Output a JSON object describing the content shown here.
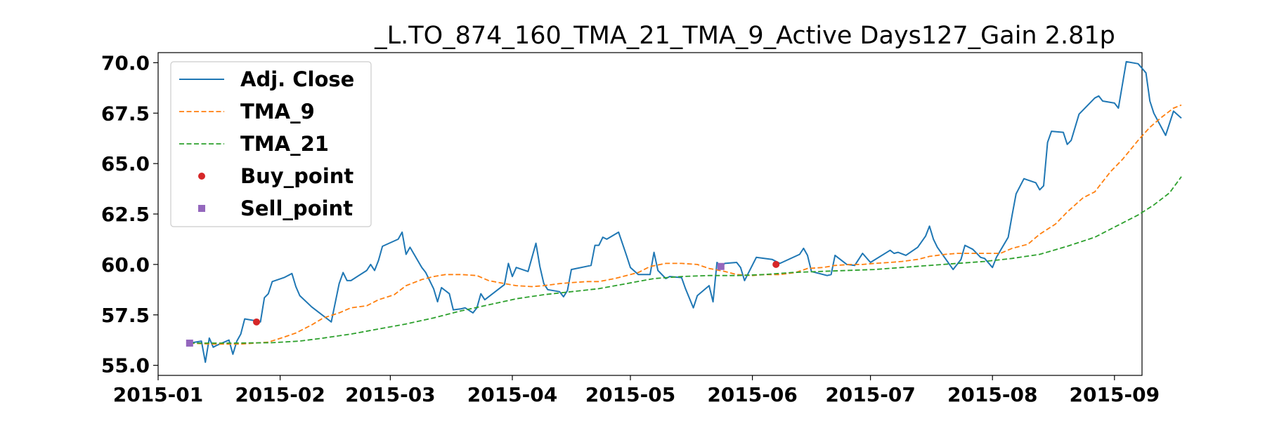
{
  "chart_data": {
    "type": "line",
    "title": "_L.TO_874_160_TMA_21_TMA_9_Active Days127_Gain   2.81p",
    "xlabel": "",
    "ylabel": "",
    "xlim": [
      "2015-01-01",
      "2015-09-08"
    ],
    "ylim": [
      54.5,
      70.5
    ],
    "x_ticks": [
      "2015-01",
      "2015-02",
      "2015-03",
      "2015-04",
      "2015-05",
      "2015-06",
      "2015-07",
      "2015-08",
      "2015-09"
    ],
    "y_ticks": [
      "55.0",
      "57.5",
      "60.0",
      "62.5",
      "65.0",
      "67.5",
      "70.0"
    ],
    "grid": false,
    "legend_position": "upper-left",
    "series": [
      {
        "name": "Adj. Close",
        "style": "solid",
        "color": "#1f77b4",
        "points": [
          [
            "2015-01-09",
            56.1
          ],
          [
            "2015-01-12",
            56.2
          ],
          [
            "2015-01-13",
            55.15
          ],
          [
            "2015-01-14",
            56.35
          ],
          [
            "2015-01-15",
            55.9
          ],
          [
            "2015-01-16",
            56.0
          ],
          [
            "2015-01-19",
            56.25
          ],
          [
            "2015-01-20",
            55.55
          ],
          [
            "2015-01-21",
            56.2
          ],
          [
            "2015-01-22",
            56.55
          ],
          [
            "2015-01-23",
            57.3
          ],
          [
            "2015-01-26",
            57.2
          ],
          [
            "2015-01-27",
            57.15
          ],
          [
            "2015-01-28",
            58.35
          ],
          [
            "2015-01-29",
            58.55
          ],
          [
            "2015-01-30",
            59.15
          ],
          [
            "2015-02-02",
            59.35
          ],
          [
            "2015-02-04",
            59.55
          ],
          [
            "2015-02-05",
            58.9
          ],
          [
            "2015-02-06",
            58.45
          ],
          [
            "2015-02-09",
            57.9
          ],
          [
            "2015-02-11",
            57.6
          ],
          [
            "2015-02-13",
            57.3
          ],
          [
            "2015-02-14",
            57.15
          ],
          [
            "2015-02-16",
            59.05
          ],
          [
            "2015-02-17",
            59.6
          ],
          [
            "2015-02-18",
            59.2
          ],
          [
            "2015-02-19",
            59.2
          ],
          [
            "2015-02-23",
            59.7
          ],
          [
            "2015-02-24",
            60.0
          ],
          [
            "2015-02-25",
            59.7
          ],
          [
            "2015-02-26",
            60.2
          ],
          [
            "2015-02-27",
            60.9
          ],
          [
            "2015-03-03",
            61.25
          ],
          [
            "2015-03-04",
            61.6
          ],
          [
            "2015-03-05",
            60.5
          ],
          [
            "2015-03-06",
            60.85
          ],
          [
            "2015-03-09",
            59.85
          ],
          [
            "2015-03-10",
            59.6
          ],
          [
            "2015-03-12",
            58.8
          ],
          [
            "2015-03-13",
            58.15
          ],
          [
            "2015-03-14",
            58.85
          ],
          [
            "2015-03-16",
            58.55
          ],
          [
            "2015-03-17",
            57.75
          ],
          [
            "2015-03-19",
            57.8
          ],
          [
            "2015-03-20",
            57.85
          ],
          [
            "2015-03-22",
            57.6
          ],
          [
            "2015-03-23",
            57.85
          ],
          [
            "2015-03-24",
            58.55
          ],
          [
            "2015-03-25",
            58.25
          ],
          [
            "2015-03-27",
            58.55
          ],
          [
            "2015-03-30",
            59.0
          ],
          [
            "2015-03-31",
            60.05
          ],
          [
            "2015-04-01",
            59.4
          ],
          [
            "2015-04-02",
            59.85
          ],
          [
            "2015-04-05",
            59.65
          ],
          [
            "2015-04-07",
            61.05
          ],
          [
            "2015-04-08",
            59.9
          ],
          [
            "2015-04-09",
            59.05
          ],
          [
            "2015-04-10",
            58.75
          ],
          [
            "2015-04-13",
            58.65
          ],
          [
            "2015-04-14",
            58.4
          ],
          [
            "2015-04-15",
            58.7
          ],
          [
            "2015-04-16",
            59.75
          ],
          [
            "2015-04-21",
            59.95
          ],
          [
            "2015-04-22",
            60.95
          ],
          [
            "2015-04-23",
            60.95
          ],
          [
            "2015-04-24",
            61.35
          ],
          [
            "2015-04-25",
            61.25
          ],
          [
            "2015-04-28",
            61.6
          ],
          [
            "2015-04-30",
            60.45
          ],
          [
            "2015-05-01",
            59.85
          ],
          [
            "2015-05-03",
            59.5
          ],
          [
            "2015-05-06",
            59.5
          ],
          [
            "2015-05-07",
            60.6
          ],
          [
            "2015-05-08",
            59.7
          ],
          [
            "2015-05-10",
            59.3
          ],
          [
            "2015-05-11",
            59.4
          ],
          [
            "2015-05-14",
            59.35
          ],
          [
            "2015-05-15",
            58.8
          ],
          [
            "2015-05-17",
            57.85
          ],
          [
            "2015-05-18",
            58.45
          ],
          [
            "2015-05-21",
            58.95
          ],
          [
            "2015-05-22",
            58.15
          ],
          [
            "2015-05-23",
            60.1
          ],
          [
            "2015-05-24",
            59.9
          ],
          [
            "2015-05-25",
            60.05
          ],
          [
            "2015-05-28",
            60.1
          ],
          [
            "2015-05-29",
            59.85
          ],
          [
            "2015-05-30",
            59.2
          ],
          [
            "2015-06-02",
            60.35
          ],
          [
            "2015-06-06",
            60.25
          ],
          [
            "2015-06-08",
            60.05
          ],
          [
            "2015-06-13",
            60.5
          ],
          [
            "2015-06-14",
            60.8
          ],
          [
            "2015-06-15",
            60.45
          ],
          [
            "2015-06-16",
            59.65
          ],
          [
            "2015-06-20",
            59.45
          ],
          [
            "2015-06-21",
            59.5
          ],
          [
            "2015-06-22",
            60.45
          ],
          [
            "2015-06-25",
            60.0
          ],
          [
            "2015-06-27",
            59.95
          ],
          [
            "2015-06-29",
            60.55
          ],
          [
            "2015-07-01",
            60.1
          ],
          [
            "2015-07-06",
            60.7
          ],
          [
            "2015-07-07",
            60.55
          ],
          [
            "2015-07-08",
            60.6
          ],
          [
            "2015-07-10",
            60.45
          ],
          [
            "2015-07-13",
            60.85
          ],
          [
            "2015-07-15",
            61.4
          ],
          [
            "2015-07-16",
            61.9
          ],
          [
            "2015-07-17",
            61.25
          ],
          [
            "2015-07-18",
            60.85
          ],
          [
            "2015-07-22",
            59.75
          ],
          [
            "2015-07-24",
            60.25
          ],
          [
            "2015-07-25",
            60.95
          ],
          [
            "2015-07-27",
            60.75
          ],
          [
            "2015-07-29",
            60.35
          ],
          [
            "2015-07-30",
            60.3
          ],
          [
            "2015-08-01",
            59.85
          ],
          [
            "2015-08-02",
            60.35
          ],
          [
            "2015-08-05",
            61.35
          ],
          [
            "2015-08-06",
            62.45
          ],
          [
            "2015-08-07",
            63.5
          ],
          [
            "2015-08-09",
            64.25
          ],
          [
            "2015-08-12",
            64.05
          ],
          [
            "2015-08-13",
            63.7
          ],
          [
            "2015-08-14",
            63.9
          ],
          [
            "2015-08-15",
            66.05
          ],
          [
            "2015-08-16",
            66.6
          ],
          [
            "2015-08-19",
            66.55
          ],
          [
            "2015-08-20",
            65.95
          ],
          [
            "2015-08-21",
            66.15
          ],
          [
            "2015-08-23",
            67.45
          ],
          [
            "2015-08-27",
            68.25
          ],
          [
            "2015-08-28",
            68.35
          ],
          [
            "2015-08-29",
            68.1
          ],
          [
            "2015-09-01",
            68.0
          ],
          [
            "2015-09-02",
            67.75
          ],
          [
            "2015-09-04",
            70.05
          ],
          [
            "2015-09-07",
            69.95
          ],
          [
            "2015-09-09",
            69.5
          ],
          [
            "2015-09-10",
            68.1
          ],
          [
            "2015-09-11",
            67.5
          ],
          [
            "2015-09-14",
            66.4
          ],
          [
            "2015-09-16",
            67.6
          ],
          [
            "2015-09-18",
            67.25
          ]
        ]
      },
      {
        "name": "TMA_9",
        "style": "dashed",
        "color": "#ff7f0e",
        "points": [
          [
            "2015-01-09",
            56.1
          ],
          [
            "2015-01-15",
            56.05
          ],
          [
            "2015-01-22",
            56.05
          ],
          [
            "2015-01-29",
            56.15
          ],
          [
            "2015-02-02",
            56.4
          ],
          [
            "2015-02-05",
            56.6
          ],
          [
            "2015-02-09",
            57.0
          ],
          [
            "2015-02-12",
            57.35
          ],
          [
            "2015-02-16",
            57.6
          ],
          [
            "2015-02-19",
            57.85
          ],
          [
            "2015-02-23",
            57.95
          ],
          [
            "2015-02-26",
            58.25
          ],
          [
            "2015-03-02",
            58.5
          ],
          [
            "2015-03-05",
            58.95
          ],
          [
            "2015-03-09",
            59.25
          ],
          [
            "2015-03-12",
            59.4
          ],
          [
            "2015-03-15",
            59.5
          ],
          [
            "2015-03-19",
            59.5
          ],
          [
            "2015-03-23",
            59.45
          ],
          [
            "2015-03-26",
            59.2
          ],
          [
            "2015-03-30",
            59.05
          ],
          [
            "2015-04-02",
            58.95
          ],
          [
            "2015-04-06",
            58.9
          ],
          [
            "2015-04-09",
            58.95
          ],
          [
            "2015-04-13",
            59.05
          ],
          [
            "2015-04-16",
            59.1
          ],
          [
            "2015-04-20",
            59.15
          ],
          [
            "2015-04-23",
            59.15
          ],
          [
            "2015-04-27",
            59.3
          ],
          [
            "2015-04-30",
            59.45
          ],
          [
            "2015-05-03",
            59.6
          ],
          [
            "2015-05-06",
            59.9
          ],
          [
            "2015-05-10",
            60.05
          ],
          [
            "2015-05-14",
            60.05
          ],
          [
            "2015-05-18",
            60.0
          ],
          [
            "2015-05-21",
            59.8
          ],
          [
            "2015-05-25",
            59.65
          ],
          [
            "2015-05-28",
            59.5
          ],
          [
            "2015-06-01",
            59.45
          ],
          [
            "2015-06-04",
            59.5
          ],
          [
            "2015-06-08",
            59.5
          ],
          [
            "2015-06-12",
            59.6
          ],
          [
            "2015-06-15",
            59.8
          ],
          [
            "2015-06-19",
            59.85
          ],
          [
            "2015-06-22",
            59.95
          ],
          [
            "2015-06-26",
            60.0
          ],
          [
            "2015-06-29",
            60.0
          ],
          [
            "2015-07-02",
            60.05
          ],
          [
            "2015-07-06",
            60.1
          ],
          [
            "2015-07-09",
            60.15
          ],
          [
            "2015-07-13",
            60.25
          ],
          [
            "2015-07-16",
            60.4
          ],
          [
            "2015-07-20",
            60.5
          ],
          [
            "2015-07-23",
            60.55
          ],
          [
            "2015-07-27",
            60.55
          ],
          [
            "2015-07-30",
            60.55
          ],
          [
            "2015-08-03",
            60.55
          ],
          [
            "2015-08-06",
            60.8
          ],
          [
            "2015-08-10",
            61.0
          ],
          [
            "2015-08-13",
            61.5
          ],
          [
            "2015-08-17",
            62.0
          ],
          [
            "2015-08-20",
            62.6
          ],
          [
            "2015-08-24",
            63.3
          ],
          [
            "2015-08-27",
            63.6
          ],
          [
            "2015-08-31",
            64.6
          ],
          [
            "2015-09-03",
            65.2
          ],
          [
            "2015-09-07",
            66.15
          ],
          [
            "2015-09-10",
            66.8
          ],
          [
            "2015-09-13",
            67.3
          ],
          [
            "2015-09-16",
            67.75
          ],
          [
            "2015-09-18",
            67.9
          ]
        ]
      },
      {
        "name": "TMA_21",
        "style": "dashed",
        "color": "#2ca02c",
        "points": [
          [
            "2015-01-09",
            56.1
          ],
          [
            "2015-01-20",
            56.1
          ],
          [
            "2015-01-30",
            56.12
          ],
          [
            "2015-02-06",
            56.2
          ],
          [
            "2015-02-12",
            56.35
          ],
          [
            "2015-02-19",
            56.55
          ],
          [
            "2015-02-26",
            56.8
          ],
          [
            "2015-03-05",
            57.05
          ],
          [
            "2015-03-12",
            57.35
          ],
          [
            "2015-03-19",
            57.7
          ],
          [
            "2015-03-26",
            58.0
          ],
          [
            "2015-04-02",
            58.3
          ],
          [
            "2015-04-09",
            58.5
          ],
          [
            "2015-04-16",
            58.65
          ],
          [
            "2015-04-23",
            58.8
          ],
          [
            "2015-04-30",
            59.05
          ],
          [
            "2015-05-07",
            59.3
          ],
          [
            "2015-05-14",
            59.4
          ],
          [
            "2015-05-21",
            59.45
          ],
          [
            "2015-05-28",
            59.45
          ],
          [
            "2015-06-04",
            59.5
          ],
          [
            "2015-06-11",
            59.6
          ],
          [
            "2015-06-18",
            59.65
          ],
          [
            "2015-06-25",
            59.7
          ],
          [
            "2015-07-02",
            59.75
          ],
          [
            "2015-07-09",
            59.85
          ],
          [
            "2015-07-16",
            59.95
          ],
          [
            "2015-07-23",
            60.05
          ],
          [
            "2015-07-30",
            60.15
          ],
          [
            "2015-08-06",
            60.3
          ],
          [
            "2015-08-13",
            60.5
          ],
          [
            "2015-08-20",
            60.9
          ],
          [
            "2015-08-27",
            61.35
          ],
          [
            "2015-09-02",
            61.95
          ],
          [
            "2015-09-07",
            62.45
          ],
          [
            "2015-09-11",
            62.95
          ],
          [
            "2015-09-15",
            63.55
          ],
          [
            "2015-09-18",
            64.35
          ]
        ]
      }
    ],
    "markers": [
      {
        "name": "Buy_point",
        "shape": "circle",
        "color": "#d62728",
        "points": [
          [
            "2015-01-26",
            57.15
          ],
          [
            "2015-06-07",
            60.0
          ]
        ]
      },
      {
        "name": "Sell_point",
        "shape": "square",
        "color": "#9467bd",
        "points": [
          [
            "2015-01-09",
            56.1
          ],
          [
            "2015-05-24",
            59.9
          ]
        ]
      }
    ]
  }
}
